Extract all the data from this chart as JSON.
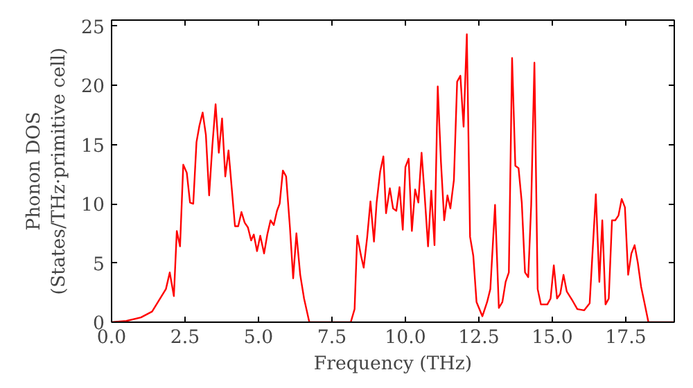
{
  "chart_data": {
    "type": "line",
    "xlabel": "Frequency (THz)",
    "ylabel": "Phonon DOS\n(States/THz·primitive cell)",
    "x": [
      0,
      0.5,
      1.0,
      1.38,
      1.85,
      1.98,
      2.12,
      2.22,
      2.33,
      2.44,
      2.56,
      2.67,
      2.78,
      2.89,
      2.99,
      3.1,
      3.21,
      3.32,
      3.43,
      3.54,
      3.65,
      3.76,
      3.87,
      3.98,
      4.09,
      4.2,
      4.31,
      4.42,
      4.53,
      4.64,
      4.75,
      4.84,
      4.95,
      5.06,
      5.19,
      5.3,
      5.41,
      5.52,
      5.63,
      5.72,
      5.83,
      5.94,
      6.07,
      6.18,
      6.29,
      6.42,
      6.55,
      6.73,
      8.14,
      8.27,
      8.36,
      8.49,
      8.58,
      8.7,
      8.81,
      8.93,
      9.02,
      9.14,
      9.25,
      9.34,
      9.47,
      9.58,
      9.69,
      9.8,
      9.91,
      10.0,
      10.11,
      10.22,
      10.33,
      10.44,
      10.55,
      10.66,
      10.77,
      10.88,
      10.99,
      11.1,
      11.21,
      11.32,
      11.43,
      11.53,
      11.65,
      11.76,
      11.87,
      11.98,
      12.09,
      12.2,
      12.31,
      12.42,
      12.62,
      12.78,
      12.89,
      13.05,
      13.18,
      13.3,
      13.41,
      13.52,
      13.63,
      13.74,
      13.85,
      13.96,
      14.07,
      14.18,
      14.28,
      14.39,
      14.5,
      14.61,
      14.83,
      14.94,
      15.05,
      15.16,
      15.27,
      15.38,
      15.49,
      15.69,
      15.85,
      16.08,
      16.27,
      16.48,
      16.6,
      16.7,
      16.81,
      16.92,
      17.03,
      17.14,
      17.25,
      17.36,
      17.47,
      17.58,
      17.69,
      17.8,
      17.91,
      18.02,
      18.13,
      18.27,
      19.15
    ],
    "series": [
      {
        "color": "#ff0000",
        "values": [
          0,
          0.1,
          0.4,
          0.9,
          2.8,
          4.2,
          2.2,
          7.7,
          6.4,
          13.3,
          12.6,
          10.1,
          10.0,
          15.2,
          16.6,
          17.7,
          15.8,
          10.7,
          14.9,
          18.4,
          14.3,
          17.2,
          12.3,
          14.5,
          11.3,
          8.1,
          8.1,
          9.3,
          8.4,
          8.0,
          6.9,
          7.4,
          6.0,
          7.3,
          5.8,
          7.4,
          8.6,
          8.2,
          9.4,
          10.0,
          12.8,
          12.3,
          8.0,
          3.7,
          7.5,
          4.0,
          2.0,
          0,
          0,
          1.1,
          7.3,
          5.6,
          4.6,
          7.2,
          10.2,
          6.8,
          10.1,
          12.7,
          14.0,
          9.2,
          11.3,
          9.6,
          9.4,
          11.4,
          7.8,
          13.1,
          13.8,
          7.7,
          11.2,
          10.1,
          14.3,
          10.5,
          6.4,
          11.1,
          6.5,
          19.9,
          13.5,
          8.6,
          10.7,
          9.6,
          12.0,
          20.3,
          20.8,
          16.5,
          24.3,
          7.2,
          5.6,
          1.7,
          0.5,
          1.7,
          2.8,
          9.9,
          1.2,
          1.7,
          3.4,
          4.2,
          22.3,
          13.2,
          13.0,
          10.1,
          4.2,
          3.8,
          9.9,
          21.9,
          2.8,
          1.5,
          1.5,
          2.0,
          4.8,
          2.0,
          2.4,
          4.0,
          2.6,
          1.8,
          1.1,
          1.0,
          1.6,
          10.8,
          3.4,
          8.6,
          1.5,
          2.0,
          8.6,
          8.6,
          9.0,
          10.4,
          9.7,
          4.0,
          5.8,
          6.5,
          5.0,
          3.0,
          1.7,
          0,
          0
        ]
      }
    ],
    "xlim": [
      0,
      19.15
    ],
    "ylim": [
      0,
      25.5
    ],
    "xticks": [
      {
        "value": 0,
        "label": "0.0"
      },
      {
        "value": 2.5,
        "label": "2.5"
      },
      {
        "value": 5,
        "label": "5.0"
      },
      {
        "value": 7.5,
        "label": "7.5"
      },
      {
        "value": 10,
        "label": "10.0"
      },
      {
        "value": 12.5,
        "label": "12.5"
      },
      {
        "value": 15,
        "label": "15.0"
      },
      {
        "value": 17.5,
        "label": "17.5"
      }
    ],
    "yticks": [
      0,
      5,
      10,
      15,
      20,
      25
    ]
  }
}
